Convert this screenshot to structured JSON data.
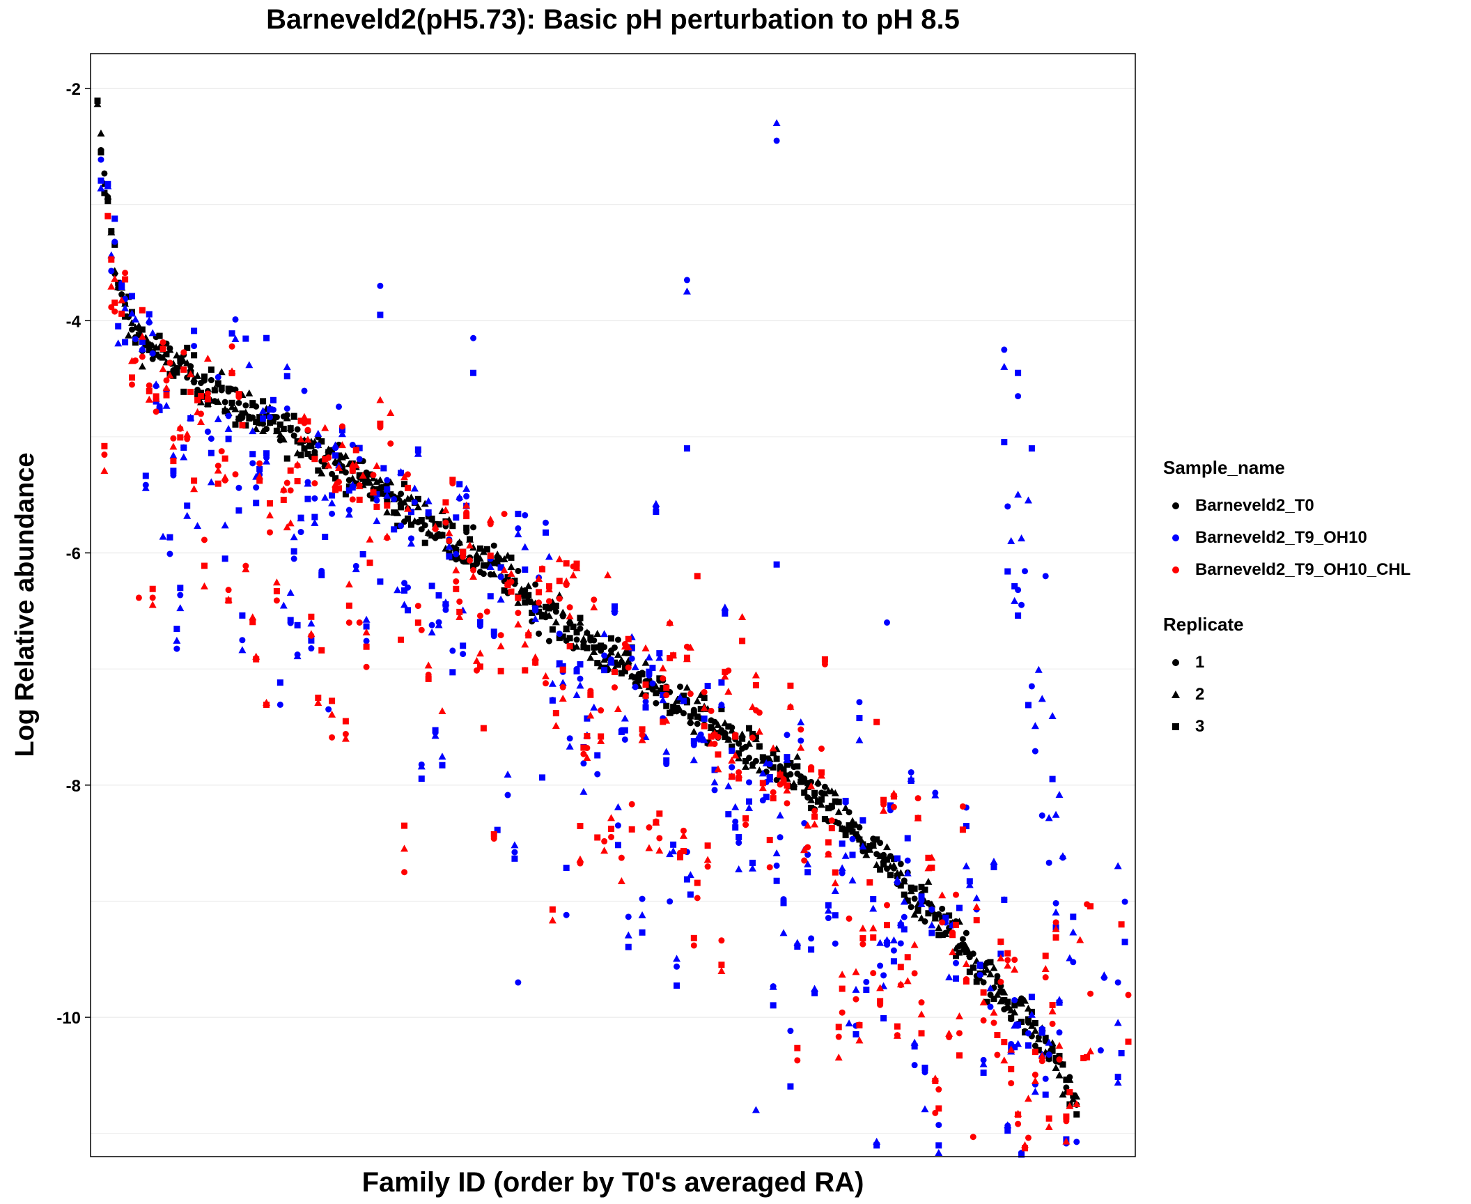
{
  "title": "Barneveld2(pH5.73): Basic pH perturbation to pH 8.5",
  "chart_data": {
    "type": "scatter",
    "title": "Barneveld2(pH5.73): Basic pH perturbation to pH 8.5",
    "xlabel": "Family ID (order by T0's averaged RA)",
    "ylabel": "Log Relative abundance",
    "ylim": [
      -11.2,
      -1.7
    ],
    "yticks": [
      -2,
      -4,
      -6,
      -8,
      -10
    ],
    "ytick_labels": [
      "-2",
      "-4",
      "-6",
      "-8",
      "-10"
    ],
    "x_tick_labels": false,
    "grid": "horizontal major and minor",
    "legend_position": "right",
    "n_families": 300,
    "series": [
      {
        "name": "Barneveld2_T0",
        "color": "#000000"
      },
      {
        "name": "Barneveld2_T9_OH10",
        "color": "#0000ff"
      },
      {
        "name": "Barneveld2_T9_OH10_CHL",
        "color": "#ff0000"
      }
    ],
    "replicates": [
      {
        "name": "1",
        "shape": "circle"
      },
      {
        "name": "2",
        "shape": "triangle"
      },
      {
        "name": "3",
        "shape": "square"
      }
    ],
    "t0_trend": [
      [
        1,
        -2.2
      ],
      [
        3,
        -2.8
      ],
      [
        5,
        -3.2
      ],
      [
        7,
        -3.7
      ],
      [
        10,
        -4.0
      ],
      [
        15,
        -4.2
      ],
      [
        20,
        -4.3
      ],
      [
        30,
        -4.5
      ],
      [
        40,
        -4.7
      ],
      [
        50,
        -4.9
      ],
      [
        60,
        -5.0
      ],
      [
        70,
        -5.2
      ],
      [
        80,
        -5.4
      ],
      [
        90,
        -5.6
      ],
      [
        100,
        -5.8
      ],
      [
        110,
        -6.0
      ],
      [
        120,
        -6.2
      ],
      [
        130,
        -6.5
      ],
      [
        140,
        -6.7
      ],
      [
        150,
        -6.9
      ],
      [
        160,
        -7.1
      ],
      [
        170,
        -7.3
      ],
      [
        180,
        -7.5
      ],
      [
        190,
        -7.7
      ],
      [
        200,
        -7.9
      ],
      [
        210,
        -8.1
      ],
      [
        220,
        -8.4
      ],
      [
        230,
        -8.7
      ],
      [
        240,
        -9.0
      ],
      [
        250,
        -9.3
      ],
      [
        260,
        -9.7
      ],
      [
        270,
        -10.0
      ],
      [
        280,
        -10.4
      ],
      [
        285,
        -10.8
      ]
    ],
    "notable_points": [
      {
        "series": "Barneveld2_T9_OH10",
        "replicate": "2",
        "x": 198,
        "y": -2.3
      },
      {
        "series": "Barneveld2_T9_OH10",
        "replicate": "1",
        "x": 198,
        "y": -2.45
      },
      {
        "series": "Barneveld2_T9_OH10",
        "replicate": "1",
        "x": 172,
        "y": -3.65
      },
      {
        "series": "Barneveld2_T9_OH10",
        "replicate": "2",
        "x": 172,
        "y": -3.75
      },
      {
        "series": "Barneveld2_T9_OH10",
        "replicate": "1",
        "x": 83,
        "y": -3.7
      },
      {
        "series": "Barneveld2_T9_OH10",
        "replicate": "3",
        "x": 83,
        "y": -3.95
      },
      {
        "series": "Barneveld2_T9_OH10",
        "replicate": "3",
        "x": 50,
        "y": -4.15
      },
      {
        "series": "Barneveld2_T9_OH10",
        "replicate": "1",
        "x": 110,
        "y": -4.15
      },
      {
        "series": "Barneveld2_T9_OH10",
        "replicate": "3",
        "x": 110,
        "y": -4.45
      },
      {
        "series": "Barneveld2_T9_OH10",
        "replicate": "3",
        "x": 172,
        "y": -5.1
      },
      {
        "series": "Barneveld2_T9_OH10",
        "replicate": "3",
        "x": 198,
        "y": -6.1
      },
      {
        "series": "Barneveld2_T9_OH10",
        "replicate": "1",
        "x": 264,
        "y": -4.25
      },
      {
        "series": "Barneveld2_T9_OH10",
        "replicate": "2",
        "x": 264,
        "y": -4.4
      },
      {
        "series": "Barneveld2_T9_OH10",
        "replicate": "3",
        "x": 268,
        "y": -4.45
      },
      {
        "series": "Barneveld2_T9_OH10",
        "replicate": "1",
        "x": 268,
        "y": -4.65
      },
      {
        "series": "Barneveld2_T9_OH10",
        "replicate": "3",
        "x": 272,
        "y": -5.1
      },
      {
        "series": "Barneveld2_T9_OH10",
        "replicate": "1",
        "x": 265,
        "y": -5.6
      },
      {
        "series": "Barneveld2_T9_OH10",
        "replicate": "2",
        "x": 268,
        "y": -5.5
      },
      {
        "series": "Barneveld2_T9_OH10",
        "replicate": "2",
        "x": 271,
        "y": -5.55
      },
      {
        "series": "Barneveld2_T9_OH10",
        "replicate": "1",
        "x": 276,
        "y": -6.2
      },
      {
        "series": "Barneveld2_T9_OH10",
        "replicate": "1",
        "x": 230,
        "y": -6.6
      },
      {
        "series": "Barneveld2_T9_OH10",
        "replicate": "2",
        "x": 297,
        "y": -8.7
      },
      {
        "series": "Barneveld2_T9_OH10",
        "replicate": "1",
        "x": 297,
        "y": -9.7
      },
      {
        "series": "Barneveld2_T9_OH10",
        "replicate": "2",
        "x": 297,
        "y": -10.05
      },
      {
        "series": "Barneveld2_T9_OH10_CHL",
        "replicate": "1",
        "x": 77,
        "y": -6.6
      },
      {
        "series": "Barneveld2_T9_OH10_CHL",
        "replicate": "2",
        "x": 90,
        "y": -8.55
      },
      {
        "series": "Barneveld2_T9_OH10_CHL",
        "replicate": "1",
        "x": 90,
        "y": -8.75
      },
      {
        "series": "Barneveld2_T9_OH10_CHL",
        "replicate": "3",
        "x": 90,
        "y": -8.35
      },
      {
        "series": "Barneveld2_T9_OH10_CHL",
        "replicate": "3",
        "x": 175,
        "y": -6.2
      },
      {
        "series": "Barneveld2_T9_OH10_CHL",
        "replicate": "2",
        "x": 285,
        "y": -10.75
      },
      {
        "series": "Barneveld2_T9_OH10_CHL",
        "replicate": "3",
        "x": 298,
        "y": -9.2
      },
      {
        "series": "Barneveld2_T9_OH10",
        "replicate": "2",
        "x": 192,
        "y": -10.8
      },
      {
        "series": "Barneveld2_T9_OH10",
        "replicate": "1",
        "x": 123,
        "y": -9.7
      }
    ]
  },
  "legend": {
    "color_title": "Sample_name",
    "color_entries": [
      "Barneveld2_T0",
      "Barneveld2_T9_OH10",
      "Barneveld2_T9_OH10_CHL"
    ],
    "shape_title": "Replicate",
    "shape_entries": [
      "1",
      "2",
      "3"
    ]
  }
}
